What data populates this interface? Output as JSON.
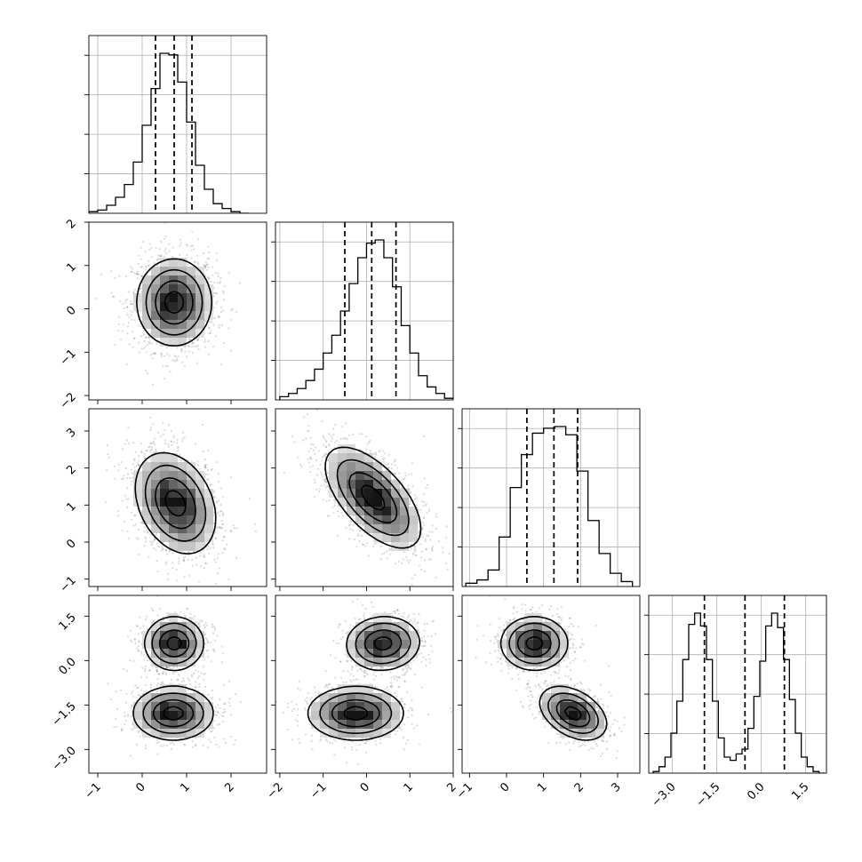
{
  "chart_data": {
    "type": "corner",
    "grid": true,
    "variables": [
      {
        "range": [
          -1.2,
          2.8
        ],
        "ticks": [
          -1,
          0,
          1,
          2
        ],
        "tick_labels": [
          "−1",
          "0",
          "1",
          "2"
        ],
        "quantiles": [
          0.3,
          0.72,
          1.12
        ],
        "hist_x": [
          -1.1,
          -0.9,
          -0.7,
          -0.5,
          -0.3,
          -0.1,
          0.1,
          0.3,
          0.5,
          0.7,
          0.9,
          1.1,
          1.3,
          1.5,
          1.7,
          1.9,
          2.1,
          2.3
        ],
        "hist_counts": [
          1,
          2,
          5,
          10,
          18,
          32,
          55,
          78,
          100,
          99,
          82,
          57,
          30,
          15,
          6,
          3,
          1,
          0
        ]
      },
      {
        "range": [
          -2.1,
          2.0
        ],
        "ticks": [
          -2,
          -1,
          0,
          1,
          2
        ],
        "tick_labels": [
          "−2",
          "−1",
          "0",
          "1",
          "2"
        ],
        "quantiles": [
          -0.5,
          0.12,
          0.68
        ],
        "hist_x": [
          -1.9,
          -1.7,
          -1.5,
          -1.3,
          -1.1,
          -0.9,
          -0.7,
          -0.5,
          -0.3,
          -0.1,
          0.1,
          0.3,
          0.5,
          0.7,
          0.9,
          1.1,
          1.3,
          1.5,
          1.7,
          1.9
        ],
        "hist_counts": [
          2,
          4,
          7,
          12,
          19,
          29,
          40,
          55,
          72,
          88,
          97,
          99,
          88,
          70,
          46,
          29,
          15,
          8,
          4,
          1
        ]
      },
      {
        "range": [
          -1.2,
          3.6
        ],
        "ticks": [
          -1,
          0,
          1,
          2,
          3
        ],
        "tick_labels": [
          "−1",
          "0",
          "1",
          "2",
          "3"
        ],
        "quantiles": [
          0.55,
          1.28,
          1.92
        ],
        "hist_x": [
          -0.95,
          -0.65,
          -0.35,
          -0.05,
          0.25,
          0.55,
          0.85,
          1.15,
          1.45,
          1.75,
          2.05,
          2.35,
          2.65,
          2.95,
          3.25
        ],
        "hist_counts": [
          2,
          4,
          10,
          30,
          60,
          80,
          93,
          96,
          97,
          92,
          70,
          40,
          20,
          8,
          3
        ]
      },
      {
        "range": [
          -3.8,
          2.2
        ],
        "ticks": [
          -3.0,
          -1.5,
          0.0,
          1.5
        ],
        "tick_labels": [
          "−3.0",
          "−1.5",
          "0.0",
          "1.5"
        ],
        "quantiles": [
          -1.92,
          -0.55,
          0.78
        ],
        "hist_x": [
          -3.55,
          -3.35,
          -3.15,
          -2.95,
          -2.75,
          -2.55,
          -2.35,
          -2.15,
          -1.95,
          -1.75,
          -1.55,
          -1.35,
          -1.15,
          -0.95,
          -0.75,
          -0.55,
          -0.35,
          -0.15,
          0.05,
          0.25,
          0.45,
          0.65,
          0.85,
          1.05,
          1.25,
          1.45,
          1.65,
          1.85,
          2.05
        ],
        "hist_counts": [
          1,
          4,
          10,
          25,
          45,
          71,
          93,
          100,
          92,
          71,
          45,
          22,
          10,
          8,
          12,
          15,
          28,
          48,
          70,
          92,
          100,
          91,
          71,
          46,
          25,
          10,
          4,
          1,
          0
        ]
      }
    ],
    "pairs": [
      {
        "x": 0,
        "y": 1,
        "modes": [
          {
            "cx": 0.72,
            "cy": 0.15,
            "sx": 0.42,
            "sy": 0.5,
            "rho": 0.0,
            "w": 1
          }
        ]
      },
      {
        "x": 0,
        "y": 2,
        "modes": [
          {
            "cx": 0.75,
            "cy": 1.05,
            "sx": 0.45,
            "sy": 0.68,
            "rho": -0.3,
            "w": 1
          }
        ]
      },
      {
        "x": 1,
        "y": 2,
        "modes": [
          {
            "cx": 0.15,
            "cy": 1.2,
            "sx": 0.55,
            "sy": 0.68,
            "rho": -0.62,
            "w": 1
          }
        ]
      },
      {
        "x": 0,
        "y": 3,
        "modes": [
          {
            "cx": 0.72,
            "cy": 0.58,
            "sx": 0.33,
            "sy": 0.45,
            "rho": 0.0,
            "w": 0.5
          },
          {
            "cx": 0.7,
            "cy": -1.78,
            "sx": 0.45,
            "sy": 0.45,
            "rho": 0.0,
            "w": 0.5
          }
        ]
      },
      {
        "x": 1,
        "y": 3,
        "modes": [
          {
            "cx": 0.38,
            "cy": 0.58,
            "sx": 0.42,
            "sy": 0.45,
            "rho": 0.05,
            "w": 0.5
          },
          {
            "cx": -0.25,
            "cy": -1.78,
            "sx": 0.55,
            "sy": 0.45,
            "rho": 0.0,
            "w": 0.5
          }
        ]
      },
      {
        "x": 2,
        "y": 3,
        "modes": [
          {
            "cx": 0.75,
            "cy": 0.58,
            "sx": 0.45,
            "sy": 0.45,
            "rho": 0.0,
            "w": 0.5
          },
          {
            "cx": 1.8,
            "cy": -1.78,
            "sx": 0.45,
            "sy": 0.45,
            "rho": -0.4,
            "w": 0.5
          }
        ]
      }
    ],
    "contour_levels": [
      0.5,
      1.0,
      1.5,
      2.0
    ]
  }
}
